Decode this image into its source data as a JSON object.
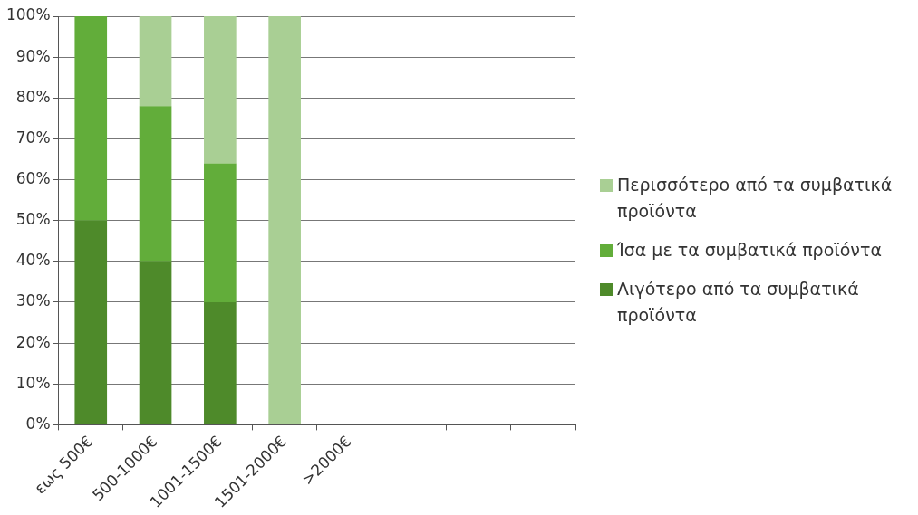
{
  "chart_data": {
    "type": "bar",
    "stacked": true,
    "categories": [
      "εως 500€",
      "500-1000€",
      "1001-1500€",
      "1501-2000€",
      ">2000€",
      null,
      null,
      null
    ],
    "series": [
      {
        "name": "Λιγότερο από τα συμβατικά προϊόντα",
        "color": "#4e8a2a",
        "values": [
          50,
          40,
          30,
          0,
          null,
          null,
          null,
          null
        ]
      },
      {
        "name": "Ίσα με τα συμβατικά προϊόντα",
        "color": "#62ad3a",
        "values": [
          50,
          38,
          34,
          0,
          null,
          null,
          null,
          null
        ]
      },
      {
        "name": "Περισσότερο από τα συμβατικά προϊόντα",
        "color": "#a9cf94",
        "values": [
          0,
          22,
          36,
          100,
          null,
          null,
          null,
          null
        ]
      }
    ],
    "ylim": [
      0,
      100
    ],
    "yticks": [
      {
        "value": 0,
        "label": "0%"
      },
      {
        "value": 10,
        "label": "10%"
      },
      {
        "value": 20,
        "label": "20%"
      },
      {
        "value": 30,
        "label": "30%"
      },
      {
        "value": 40,
        "label": "40%"
      },
      {
        "value": 50,
        "label": "50%"
      },
      {
        "value": 60,
        "label": "60%"
      },
      {
        "value": 70,
        "label": "70%"
      },
      {
        "value": 80,
        "label": "80%"
      },
      {
        "value": 90,
        "label": "90%"
      },
      {
        "value": 100,
        "label": "100%"
      }
    ],
    "grid": "y",
    "legend": "right"
  }
}
